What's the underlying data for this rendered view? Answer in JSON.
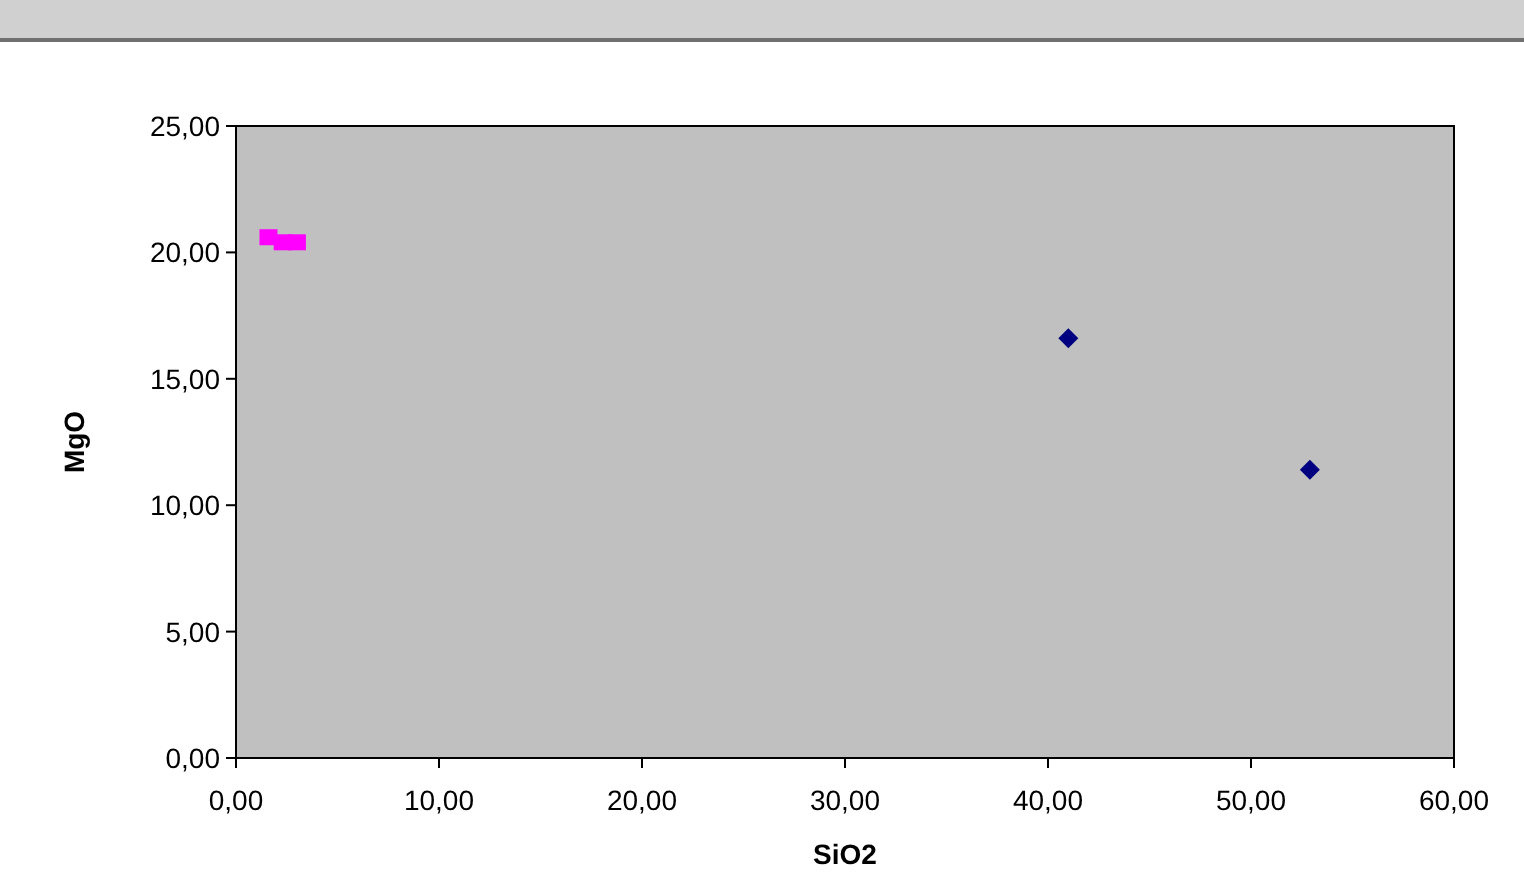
{
  "chart_data": {
    "type": "scatter",
    "xlabel": "SiO2",
    "ylabel": "MgO",
    "xlim": [
      0,
      60
    ],
    "ylim": [
      0,
      25
    ],
    "xticks": [
      {
        "value": 0,
        "label": "0,00"
      },
      {
        "value": 10,
        "label": "10,00"
      },
      {
        "value": 20,
        "label": "20,00"
      },
      {
        "value": 30,
        "label": "30,00"
      },
      {
        "value": 40,
        "label": "40,00"
      },
      {
        "value": 50,
        "label": "50,00"
      },
      {
        "value": 60,
        "label": "60,00"
      }
    ],
    "yticks": [
      {
        "value": 0,
        "label": "0,00"
      },
      {
        "value": 5,
        "label": "5,00"
      },
      {
        "value": 10,
        "label": "10,00"
      },
      {
        "value": 15,
        "label": "15,00"
      },
      {
        "value": 20,
        "label": "20,00"
      },
      {
        "value": 25,
        "label": "25,00"
      }
    ],
    "series": [
      {
        "color": "#000080",
        "marker": "diamond",
        "x": [
          41.0,
          52.9
        ],
        "values": [
          16.6,
          11.4
        ]
      },
      {
        "color": "#ff00ff",
        "marker": "square",
        "x": [
          1.6,
          2.3,
          3.0
        ],
        "values": [
          20.6,
          20.4,
          20.4
        ]
      }
    ]
  }
}
